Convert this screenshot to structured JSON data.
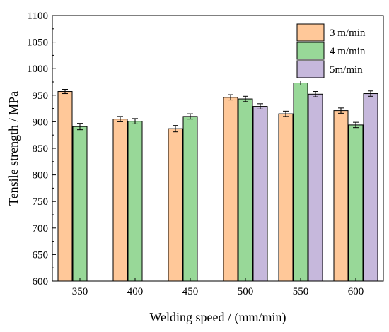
{
  "chart_data": {
    "type": "bar",
    "xlabel": "Welding speed / (mm/min)",
    "ylabel": "Tensile strength / MPa",
    "categories": [
      "350",
      "400",
      "450",
      "500",
      "550",
      "600"
    ],
    "ylim": [
      600,
      1100
    ],
    "yticks": [
      "600",
      "650",
      "700",
      "750",
      "800",
      "850",
      "900",
      "950",
      "1000",
      "1050",
      "1100"
    ],
    "legend_position": "top-right",
    "grid": false,
    "series": [
      {
        "name": "3 m/min",
        "color": "#FFC899",
        "values": [
          957,
          905,
          887,
          946,
          915,
          921
        ],
        "errors": [
          4,
          5,
          6,
          5,
          5,
          5
        ]
      },
      {
        "name": "4 m/min",
        "color": "#98D898",
        "values": [
          891,
          901,
          910,
          943,
          973,
          894
        ],
        "errors": [
          6,
          5,
          5,
          5,
          4,
          5
        ]
      },
      {
        "name": "5m/min",
        "color": "#C6B8DC",
        "values": [
          null,
          null,
          null,
          929,
          952,
          953
        ],
        "errors": [
          null,
          null,
          null,
          5,
          5,
          5
        ]
      }
    ]
  }
}
